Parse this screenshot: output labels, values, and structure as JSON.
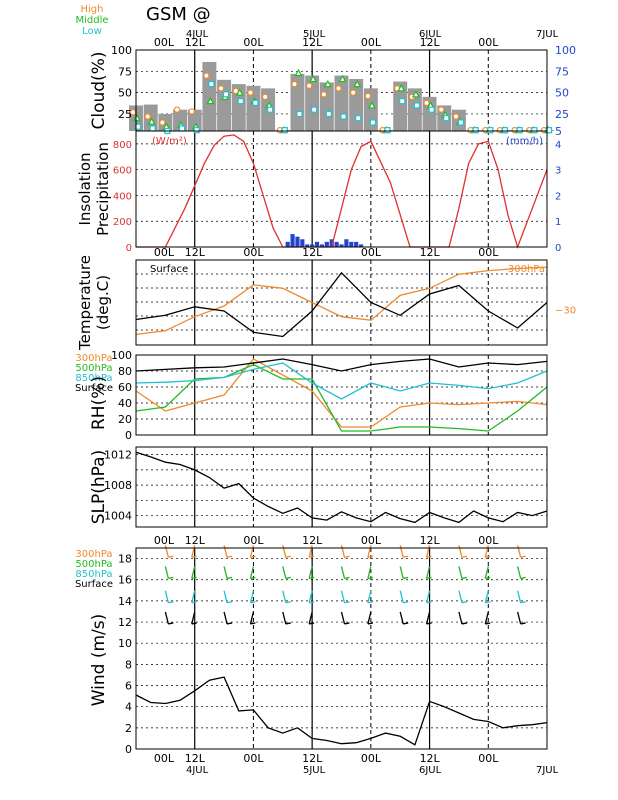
{
  "header": {
    "title": "GSM  @",
    "legend_cloud": [
      "High",
      "Middle",
      "Low"
    ],
    "legend_levels": [
      "300hPa",
      "500hPa",
      "850hPa",
      "Surface"
    ]
  },
  "colors": {
    "high": "#f08a2a",
    "middle": "#22bb22",
    "low": "#22c0d0",
    "surface": "#000000",
    "insolation": "#e03030",
    "precip": "#2244cc",
    "cloud_bar": "#9a9a9a"
  },
  "time_axis": {
    "start": "2000-07-03T12",
    "end": "2000-07-07T00",
    "unit": "hour",
    "top_ticks": [
      "00L",
      "12L",
      "00L",
      "12L",
      "00L",
      "12L",
      "00L"
    ],
    "date_labels": [
      "4JUL",
      "5JUL",
      "6JUL",
      "7JUL"
    ]
  },
  "chart_data": [
    {
      "type": "bar",
      "name": "cloud",
      "ylabel": "Cloud(%)",
      "ylim": [
        5,
        100
      ],
      "yticks": [
        25,
        50,
        75,
        100
      ],
      "yticks_right": [
        5,
        25,
        50,
        75,
        100
      ],
      "x": [
        0,
        3,
        6,
        9,
        12,
        15,
        18,
        21,
        24,
        27,
        30,
        33,
        36,
        39,
        42,
        45,
        48,
        51,
        54,
        57,
        60,
        63,
        66,
        69,
        72,
        75,
        78,
        81,
        84
      ],
      "total": [
        35,
        36,
        25,
        30,
        30,
        86,
        65,
        60,
        58,
        55,
        6,
        72,
        70,
        62,
        70,
        66,
        55,
        6,
        63,
        55,
        45,
        35,
        30,
        6,
        6,
        6,
        6,
        6,
        6
      ],
      "high": [
        27,
        22,
        15,
        30,
        28,
        70,
        55,
        52,
        50,
        45,
        6,
        60,
        58,
        48,
        55,
        50,
        46,
        6,
        55,
        45,
        38,
        30,
        22,
        6,
        6,
        6,
        6,
        6,
        6
      ],
      "middle": [
        20,
        16,
        10,
        12,
        10,
        40,
        45,
        50,
        40,
        35,
        6,
        73,
        66,
        60,
        66,
        60,
        35,
        6,
        55,
        48,
        35,
        24,
        16,
        6,
        6,
        6,
        6,
        6,
        6
      ],
      "low": [
        10,
        8,
        5,
        8,
        6,
        60,
        48,
        40,
        38,
        30,
        6,
        25,
        30,
        25,
        22,
        20,
        15,
        6,
        40,
        35,
        30,
        20,
        15,
        6,
        6,
        6,
        6,
        6,
        6
      ]
    },
    {
      "type": "line",
      "name": "insolation-precipitation",
      "ylabel": "Insolation Precipitation",
      "unit_left": "(W/m²)",
      "unit_right": "(mm/h)",
      "ylim": [
        0,
        900
      ],
      "yticks": [
        0,
        200,
        400,
        600,
        800
      ],
      "yticks_right": [
        0,
        1,
        2,
        3,
        4
      ],
      "x": [
        0,
        6,
        10,
        14,
        16,
        18,
        20,
        22,
        24,
        26,
        28,
        30,
        32,
        34,
        36,
        38,
        40,
        42,
        44,
        46,
        48,
        52,
        56,
        60,
        62,
        64,
        66,
        68,
        70,
        72,
        74,
        76,
        78,
        84
      ],
      "insolation": [
        0,
        0,
        300,
        650,
        790,
        860,
        870,
        820,
        650,
        400,
        150,
        0,
        0,
        0,
        0,
        0,
        0,
        300,
        600,
        780,
        820,
        500,
        0,
        0,
        0,
        0,
        300,
        650,
        800,
        820,
        600,
        250,
        0,
        600
      ],
      "precip_x": [
        31,
        32,
        33,
        34,
        35,
        36,
        37,
        38,
        39,
        40,
        41,
        42,
        43,
        44,
        45,
        46
      ],
      "precip": [
        0.2,
        0.5,
        0.4,
        0.3,
        0.1,
        0.1,
        0.2,
        0.1,
        0.2,
        0.3,
        0.2,
        0.1,
        0.3,
        0.2,
        0.2,
        0.1
      ]
    },
    {
      "type": "line",
      "name": "temperature",
      "ylabel": "Temperature (deg.C)",
      "series_labels": [
        "Surface",
        "300hPa"
      ],
      "ytick_right": "−30",
      "x": [
        0,
        6,
        12,
        18,
        24,
        30,
        36,
        42,
        48,
        54,
        60,
        66,
        72,
        78,
        84
      ],
      "surface": [
        16,
        17,
        19,
        18,
        13,
        12,
        18,
        27,
        20,
        17,
        22,
        24,
        18,
        14,
        20
      ],
      "t300": [
        -33.5,
        -33,
        -31,
        -29.5,
        -26.5,
        -27,
        -29,
        -31,
        -31.5,
        -28,
        -27,
        -25,
        -24.5,
        -24.2,
        -24
      ]
    },
    {
      "type": "line",
      "name": "rh",
      "ylabel": "RH(%)",
      "ylim": [
        0,
        100
      ],
      "yticks": [
        0,
        20,
        40,
        60,
        80,
        100
      ],
      "x": [
        0,
        6,
        12,
        18,
        24,
        30,
        36,
        42,
        48,
        54,
        60,
        66,
        72,
        78,
        84
      ],
      "rh300": [
        55,
        30,
        40,
        50,
        95,
        75,
        55,
        10,
        10,
        35,
        40,
        38,
        40,
        42,
        38
      ],
      "rh500": [
        30,
        35,
        70,
        72,
        88,
        70,
        70,
        5,
        5,
        10,
        10,
        8,
        5,
        30,
        60
      ],
      "rh850": [
        65,
        66,
        68,
        72,
        82,
        90,
        65,
        45,
        65,
        55,
        65,
        62,
        58,
        65,
        80
      ],
      "rh_sfc": [
        80,
        82,
        84,
        85,
        90,
        95,
        88,
        80,
        88,
        92,
        95,
        85,
        90,
        88,
        92
      ]
    },
    {
      "type": "line",
      "name": "slp",
      "ylabel": "SLP(hPa)",
      "ylim": [
        1002.5,
        1013
      ],
      "yticks": [
        1004,
        1008,
        1012
      ],
      "x": [
        0,
        3,
        6,
        9,
        12,
        15,
        18,
        21,
        24,
        27,
        30,
        33,
        36,
        39,
        42,
        45,
        48,
        51,
        54,
        57,
        60,
        63,
        66,
        69,
        72,
        75,
        78,
        81,
        84
      ],
      "slp": [
        1012.3,
        1011.7,
        1011.0,
        1010.7,
        1010.0,
        1009.0,
        1007.6,
        1008.2,
        1006.3,
        1005.2,
        1004.3,
        1005.0,
        1003.7,
        1003.4,
        1004.5,
        1003.7,
        1003.2,
        1004.4,
        1003.6,
        1003.1,
        1004.4,
        1003.7,
        1003.1,
        1004.6,
        1003.7,
        1003.2,
        1004.4,
        1004.0,
        1004.6
      ]
    },
    {
      "type": "line",
      "name": "wind",
      "ylabel": "Wind (m/s)",
      "ylim": [
        0,
        19
      ],
      "yticks": [
        0,
        2,
        4,
        6,
        8,
        10,
        12,
        14,
        16,
        18
      ],
      "x": [
        0,
        3,
        6,
        9,
        12,
        15,
        18,
        21,
        24,
        27,
        30,
        33,
        36,
        39,
        42,
        45,
        48,
        51,
        54,
        57,
        60,
        63,
        66,
        69,
        72,
        75,
        78,
        81,
        84
      ],
      "surface": [
        5.1,
        4.4,
        4.3,
        4.6,
        5.5,
        6.5,
        6.8,
        3.6,
        3.7,
        2.0,
        1.5,
        2.0,
        1.0,
        0.8,
        0.5,
        0.6,
        1.0,
        1.5,
        1.2,
        0.4,
        4.5,
        4.0,
        3.4,
        2.8,
        2.6,
        2.0,
        2.2,
        2.3,
        2.5
      ],
      "barb_x": [
        6,
        12,
        18,
        24,
        30,
        36,
        42,
        48,
        54,
        60,
        66,
        72,
        78
      ],
      "barb_levels": [
        {
          "level": "300hPa",
          "y": 18.5
        },
        {
          "level": "500hPa",
          "y": 16.5
        },
        {
          "level": "850hPa",
          "y": 14.2
        },
        {
          "level": "Surface",
          "y": 12.2
        }
      ]
    }
  ]
}
